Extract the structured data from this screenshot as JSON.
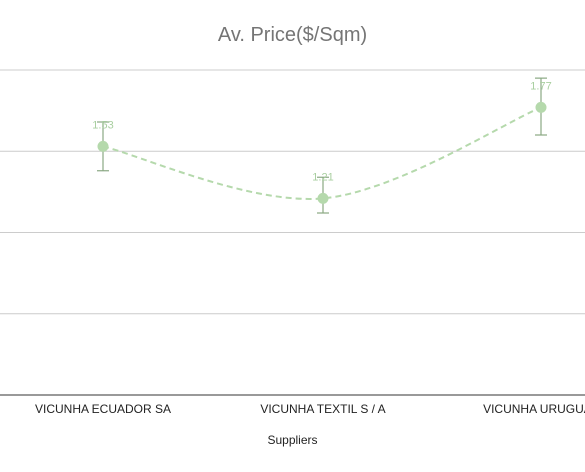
{
  "chart_data": {
    "type": "line",
    "title": "Av. Price($/Sqm)",
    "xlabel": "Suppliers",
    "ylabel": "",
    "categories": [
      "VICUNHA ECUADOR SA",
      "VICUNHA TEXTIL S / A",
      "VICUNHA URUGUAY"
    ],
    "series": [
      {
        "values": [
          1.53,
          1.21,
          1.77
        ],
        "error_low": [
          1.38,
          1.12,
          1.6
        ],
        "error_high": [
          1.68,
          1.34,
          1.95
        ],
        "data_labels": [
          "1.53",
          "1.21",
          "1.77"
        ],
        "line_style": "dashed",
        "smooth": true
      }
    ],
    "ylim": [
      0,
      2.0
    ],
    "grid": true,
    "legend": "none"
  },
  "colors": {
    "series": "#b5d9ac",
    "error_bar": "#8aa883",
    "data_label": "#a9cfa0",
    "grid": "#cccccc",
    "axis": "#333333"
  }
}
